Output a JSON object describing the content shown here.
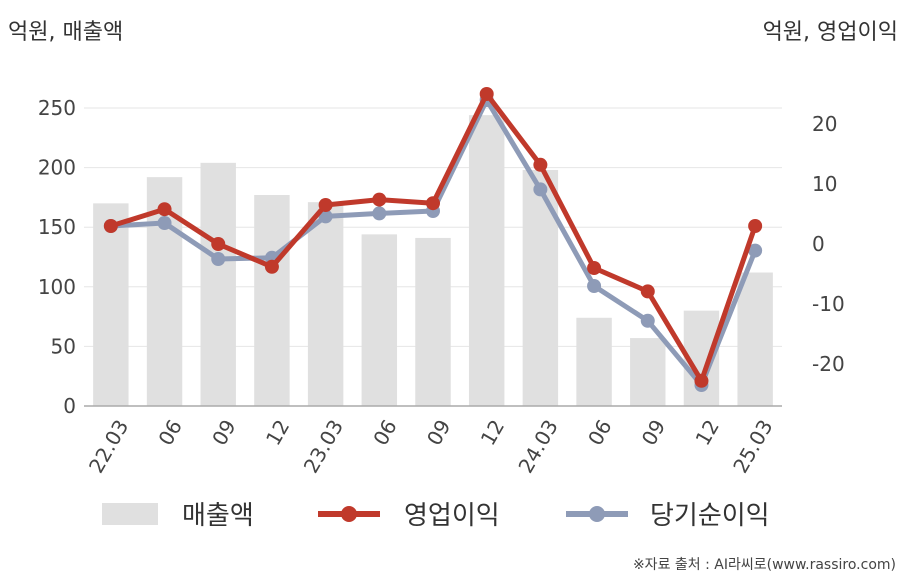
{
  "left_unit": "억원, 매출액",
  "right_unit": "억원, 영업이익",
  "source": "※자료 출처 : AI라씨로(www.rassiro.com)",
  "colors": {
    "bars": "#e0e0e0",
    "operating": "#c0392b",
    "net": "#8e9bb7",
    "grid": "#e6e6e6",
    "axis": "#aaaaaa"
  },
  "chart_data": {
    "type": "bar",
    "categories": [
      "22.03",
      "06",
      "09",
      "12",
      "23.03",
      "06",
      "09",
      "12",
      "24.03",
      "06",
      "09",
      "12",
      "25.03"
    ],
    "y_left": {
      "ticks": [
        0,
        50,
        100,
        150,
        200,
        250
      ],
      "lim": [
        0,
        250
      ]
    },
    "y_right": {
      "ticks": [
        -20,
        -10,
        0,
        10,
        20
      ],
      "lim": [
        -27,
        25
      ]
    },
    "grid": true,
    "legend_position": "bottom",
    "series": [
      {
        "name": "매출액",
        "type": "bar",
        "axis": "left",
        "values": [
          170,
          192,
          204,
          177,
          171,
          144,
          141,
          244,
          198,
          74,
          57,
          80,
          112
        ]
      },
      {
        "name": "영업이익",
        "type": "line",
        "axis": "right",
        "values": [
          3.0,
          5.8,
          0.0,
          -3.8,
          6.5,
          7.4,
          6.8,
          25.0,
          13.2,
          -4.0,
          -7.9,
          -22.8,
          3.0
        ]
      },
      {
        "name": "당기순이익",
        "type": "line",
        "axis": "right",
        "values": [
          3.0,
          3.5,
          -2.5,
          -2.3,
          4.6,
          5.1,
          5.5,
          24.0,
          9.1,
          -7.0,
          -12.8,
          -23.5,
          -1.1
        ]
      }
    ]
  }
}
